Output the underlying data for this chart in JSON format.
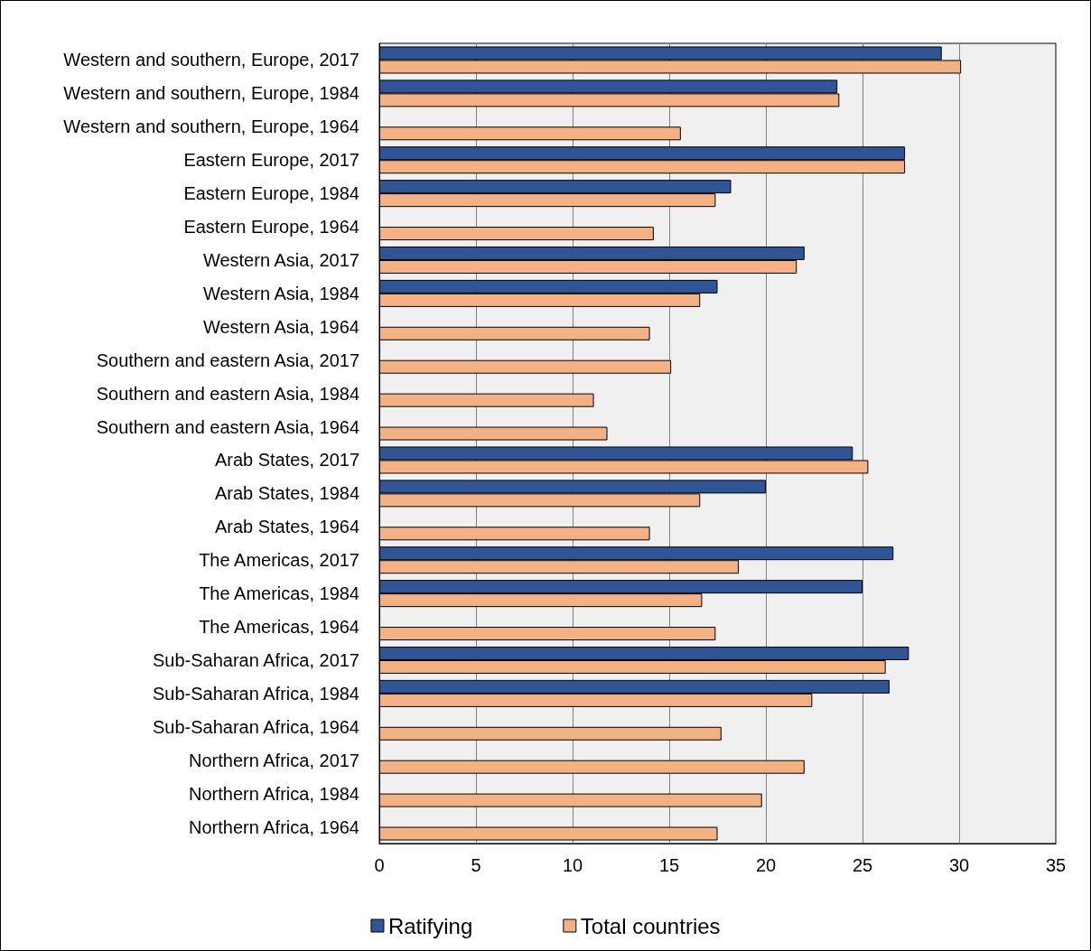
{
  "chart_data": {
    "type": "bar",
    "orientation": "horizontal",
    "categories": [
      "Western and southern, Europe, 2017",
      "Western and southern, Europe, 1984",
      "Western and southern, Europe, 1964",
      "Eastern Europe, 2017",
      "Eastern Europe, 1984",
      "Eastern Europe, 1964",
      "Western Asia, 2017",
      "Western Asia, 1984",
      "Western Asia, 1964",
      "Southern and eastern Asia, 2017",
      "Southern and eastern Asia, 1984",
      "Southern and eastern Asia, 1964",
      "Arab States, 2017",
      "Arab States, 1984",
      "Arab States, 1964",
      "The Americas, 2017",
      "The Americas, 1984",
      "The Americas, 1964",
      "Sub-Saharan Africa, 2017",
      "Sub-Saharan Africa, 1984",
      "Sub-Saharan Africa, 1964",
      "Northern Africa, 2017",
      "Northern Africa, 1984",
      "Northern Africa, 1964"
    ],
    "series": [
      {
        "name": "Ratifying",
        "color": "#2f5597",
        "values": [
          29.1,
          23.7,
          null,
          27.2,
          18.2,
          null,
          22.0,
          17.5,
          null,
          null,
          null,
          null,
          24.5,
          20.0,
          null,
          26.6,
          25.0,
          null,
          27.4,
          26.4,
          null,
          null,
          null,
          null
        ]
      },
      {
        "name": "Total countries",
        "color": "#f4b183",
        "values": [
          30.1,
          23.8,
          15.6,
          27.2,
          17.4,
          14.2,
          21.6,
          16.6,
          14.0,
          15.1,
          11.1,
          11.8,
          25.3,
          16.6,
          14.0,
          18.6,
          16.7,
          17.4,
          26.2,
          22.4,
          17.7,
          22.0,
          19.8,
          17.5
        ]
      }
    ],
    "xlim": [
      0,
      35
    ],
    "xticks": [
      0,
      5,
      10,
      15,
      20,
      25,
      30,
      35
    ],
    "grid": "x",
    "legend": "bottom"
  }
}
